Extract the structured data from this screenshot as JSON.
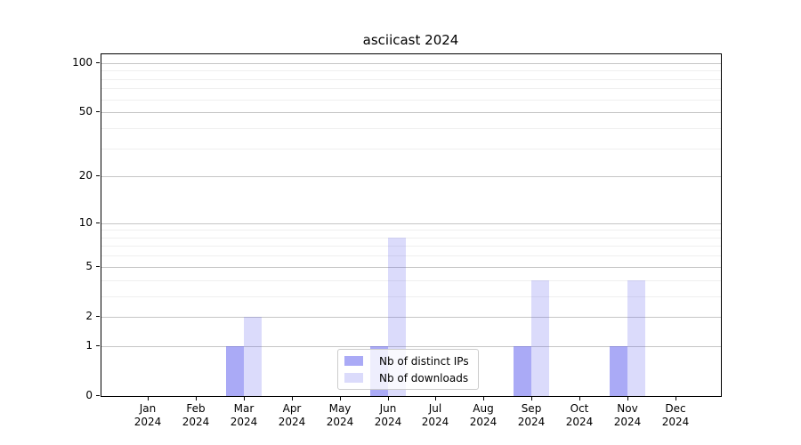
{
  "chart_data": {
    "type": "bar",
    "title": "asciicast 2024",
    "x_tick_year": "2024",
    "categories": [
      "Jan",
      "Feb",
      "Mar",
      "Apr",
      "May",
      "Jun",
      "Jul",
      "Aug",
      "Sep",
      "Oct",
      "Nov",
      "Dec"
    ],
    "series": [
      {
        "name": "Nb of distinct IPs",
        "color": "rgba(85,85,238,0.5)",
        "values": [
          0,
          0,
          1,
          0,
          0,
          1,
          0,
          0,
          1,
          0,
          1,
          0
        ]
      },
      {
        "name": "Nb of downloads",
        "color": "rgba(85,85,238,0.21)",
        "values": [
          0,
          0,
          2,
          0,
          0,
          8,
          0,
          0,
          4,
          0,
          4,
          0
        ]
      }
    ],
    "yscale": "log1p",
    "ylim": [
      0,
      113
    ],
    "major_yticks": [
      0,
      1,
      2,
      5,
      10,
      20,
      50,
      100
    ],
    "minor_yticks": [
      3,
      4,
      6,
      7,
      8,
      9,
      30,
      40,
      60,
      70,
      80,
      90
    ],
    "grid": true,
    "legend_position": "lower-center-inside",
    "colors": {
      "major_grid": "#c6c6c6",
      "minor_grid": "#efefef",
      "axis": "#000000",
      "text": "#000000",
      "background": "#ffffff"
    }
  }
}
